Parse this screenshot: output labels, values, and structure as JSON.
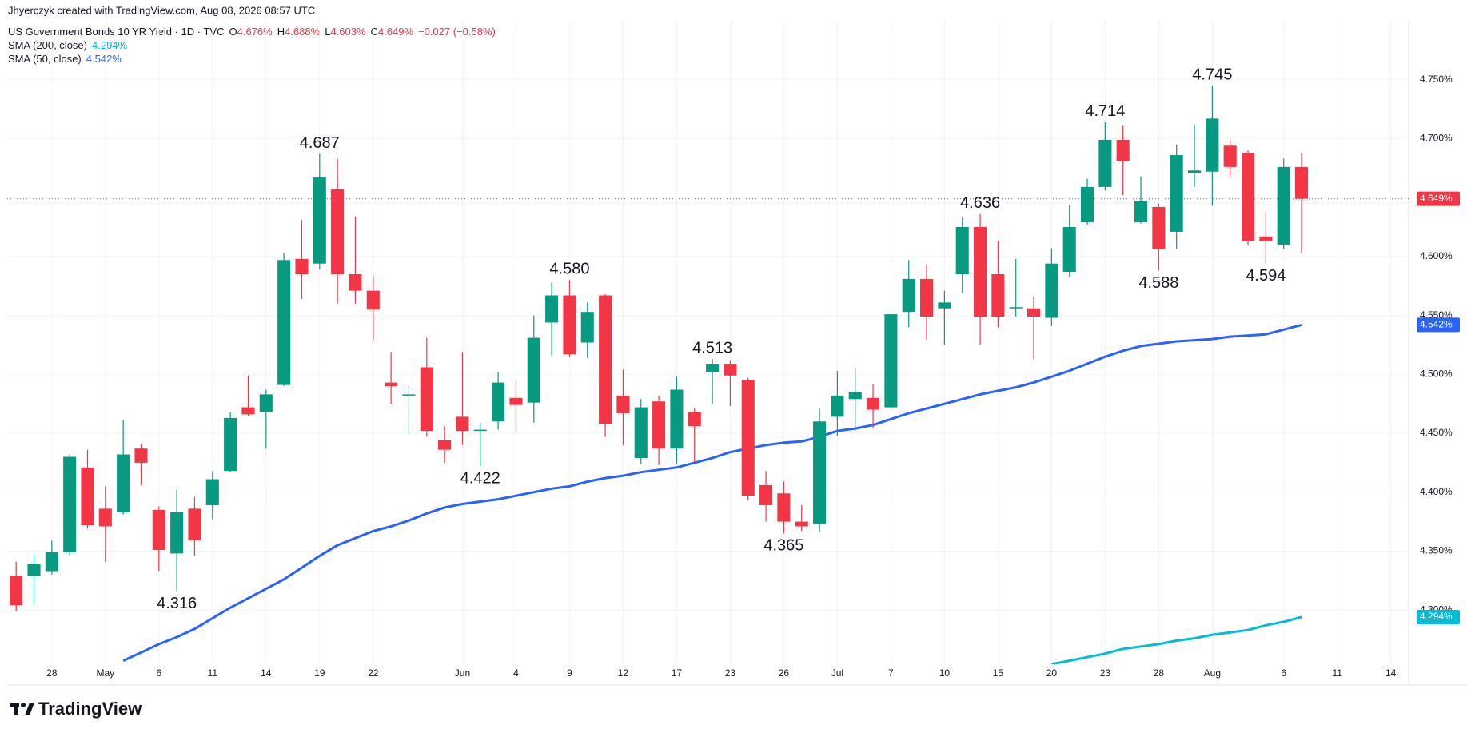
{
  "header": {
    "credit": "Jhyerczyk created with TradingView.com, Aug 08, 2026 08:57 UTC",
    "symbol": "US Government Bonds 10 YR Yield · 1D · TVC",
    "ohlc": [
      {
        "key": "O",
        "value": "4.676%"
      },
      {
        "key": "H",
        "value": "4.688%"
      },
      {
        "key": "L",
        "value": "4.603%"
      },
      {
        "key": "C",
        "value": "4.649%"
      }
    ],
    "change": "−0.027 (−0.58%)",
    "logo": "TradingView"
  },
  "chart_data": {
    "type": "candlestick",
    "up_color": "#089981",
    "down_color": "#f23645",
    "ohlc": {
      "open": [
        4.329,
        4.329,
        4.333,
        4.349,
        4.421,
        4.386,
        4.383,
        4.437,
        4.385,
        4.348,
        4.386,
        4.389,
        4.418,
        4.472,
        4.468,
        4.491,
        4.598,
        4.594,
        4.657,
        4.585,
        4.571,
        4.493,
        4.482,
        4.506,
        4.444,
        4.464,
        4.452,
        4.46,
        4.48,
        4.476,
        4.544,
        4.567,
        4.527,
        4.567,
        4.482,
        4.429,
        4.477,
        4.437,
        4.468,
        4.502,
        4.509,
        4.495,
        4.406,
        4.399,
        4.375,
        4.373,
        4.464,
        4.479,
        4.48,
        4.472,
        4.553,
        4.581,
        4.556,
        4.585,
        4.625,
        4.585,
        4.556,
        4.556,
        4.548,
        4.587,
        4.629,
        4.659,
        4.699,
        4.629,
        4.642,
        4.621,
        4.671,
        4.672,
        4.694,
        4.688,
        4.617,
        4.61,
        4.676
      ],
      "high": [
        4.341,
        4.348,
        4.359,
        4.432,
        4.436,
        4.405,
        4.461,
        4.441,
        4.388,
        4.402,
        4.396,
        4.418,
        4.468,
        4.499,
        4.487,
        4.603,
        4.631,
        4.687,
        4.683,
        4.634,
        4.584,
        4.519,
        4.49,
        4.531,
        4.456,
        4.519,
        4.459,
        4.502,
        4.495,
        4.55,
        4.578,
        4.58,
        4.561,
        4.568,
        4.504,
        4.479,
        4.482,
        4.498,
        4.471,
        4.513,
        4.512,
        4.497,
        4.418,
        4.409,
        4.389,
        4.471,
        4.503,
        4.505,
        4.492,
        4.552,
        4.597,
        4.593,
        4.571,
        4.633,
        4.636,
        4.613,
        4.598,
        4.566,
        4.607,
        4.644,
        4.666,
        4.714,
        4.711,
        4.668,
        4.645,
        4.695,
        4.712,
        4.745,
        4.699,
        4.69,
        4.638,
        4.683,
        4.688
      ],
      "low": [
        4.299,
        4.306,
        4.33,
        4.346,
        4.369,
        4.341,
        4.381,
        4.406,
        4.333,
        4.316,
        4.346,
        4.377,
        4.417,
        4.465,
        4.437,
        4.49,
        4.564,
        4.589,
        4.56,
        4.56,
        4.529,
        4.475,
        4.449,
        4.447,
        4.425,
        4.44,
        4.422,
        4.453,
        4.451,
        4.459,
        4.516,
        4.515,
        4.514,
        4.447,
        4.44,
        4.424,
        4.423,
        4.424,
        4.425,
        4.475,
        4.473,
        4.393,
        4.375,
        4.365,
        4.367,
        4.366,
        4.448,
        4.452,
        4.454,
        4.471,
        4.54,
        4.529,
        4.525,
        4.569,
        4.525,
        4.54,
        4.549,
        4.513,
        4.541,
        4.583,
        4.627,
        4.656,
        4.652,
        4.628,
        4.588,
        4.606,
        4.659,
        4.643,
        4.667,
        4.61,
        4.594,
        4.606,
        4.603
      ],
      "close": [
        4.304,
        4.339,
        4.349,
        4.43,
        4.372,
        4.371,
        4.432,
        4.425,
        4.351,
        4.383,
        4.359,
        4.411,
        4.463,
        4.466,
        4.483,
        4.597,
        4.585,
        4.667,
        4.585,
        4.571,
        4.555,
        4.49,
        4.483,
        4.452,
        4.436,
        4.452,
        4.453,
        4.493,
        4.474,
        4.531,
        4.567,
        4.517,
        4.553,
        4.458,
        4.467,
        4.472,
        4.437,
        4.487,
        4.456,
        4.509,
        4.499,
        4.397,
        4.389,
        4.375,
        4.371,
        4.46,
        4.482,
        4.485,
        4.47,
        4.551,
        4.581,
        4.549,
        4.561,
        4.625,
        4.549,
        4.549,
        4.557,
        4.549,
        4.594,
        4.625,
        4.659,
        4.699,
        4.681,
        4.647,
        4.606,
        4.686,
        4.673,
        4.717,
        4.676,
        4.613,
        4.613,
        4.676,
        4.649
      ]
    },
    "last_label": "4.649%",
    "series": [
      {
        "name": "SMA (200, close)",
        "color": "#00bcd4",
        "last_label": "4.294%",
        "values": [
          null,
          null,
          null,
          null,
          null,
          null,
          null,
          null,
          null,
          null,
          null,
          null,
          null,
          null,
          null,
          null,
          null,
          null,
          null,
          null,
          null,
          null,
          null,
          null,
          null,
          null,
          null,
          null,
          null,
          null,
          null,
          null,
          null,
          null,
          null,
          null,
          null,
          null,
          null,
          null,
          null,
          null,
          null,
          null,
          null,
          null,
          null,
          null,
          null,
          null,
          null,
          null,
          null,
          null,
          null,
          null,
          null,
          null,
          4.254,
          4.257,
          4.26,
          4.263,
          4.267,
          4.269,
          4.271,
          4.274,
          4.276,
          4.279,
          4.281,
          4.283,
          4.287,
          4.29,
          4.294
        ]
      },
      {
        "name": "SMA (50, close)",
        "color": "#2962ff",
        "last_label": "4.542%",
        "values": [
          null,
          null,
          null,
          null,
          null,
          null,
          4.257,
          4.264,
          4.271,
          4.277,
          4.284,
          4.293,
          4.302,
          4.31,
          4.318,
          4.326,
          4.336,
          4.346,
          4.355,
          4.361,
          4.367,
          4.371,
          4.376,
          4.382,
          4.387,
          4.39,
          4.392,
          4.394,
          4.397,
          4.4,
          4.403,
          4.405,
          4.409,
          4.412,
          4.414,
          4.417,
          4.419,
          4.421,
          4.425,
          4.429,
          4.434,
          4.437,
          4.44,
          4.442,
          4.443,
          4.447,
          4.452,
          4.454,
          4.457,
          4.462,
          4.467,
          4.471,
          4.475,
          4.479,
          4.483,
          4.486,
          4.489,
          4.493,
          4.498,
          4.503,
          4.509,
          4.515,
          4.52,
          4.524,
          4.526,
          4.528,
          4.529,
          4.53,
          4.532,
          4.533,
          4.534,
          4.538,
          4.542
        ]
      }
    ],
    "annotations": [
      {
        "value": 4.687,
        "label": "4.687"
      },
      {
        "value": 4.316,
        "label": "4.316"
      },
      {
        "value": 4.58,
        "label": "4.580"
      },
      {
        "value": 4.422,
        "label": "4.422"
      },
      {
        "value": 4.365,
        "label": "4.365"
      },
      {
        "value": 4.636,
        "label": "4.636"
      },
      {
        "value": 4.513,
        "label": "4.513"
      },
      {
        "value": 4.714,
        "label": "4.714"
      },
      {
        "value": 4.588,
        "label": "4.588"
      },
      {
        "value": 4.745,
        "label": "4.745"
      },
      {
        "value": 4.594,
        "label": "4.594"
      }
    ],
    "xlim": [
      -0.5,
      78
    ],
    "xticks": [
      {
        "value": 2,
        "label": "28"
      },
      {
        "value": 5,
        "label": "May"
      },
      {
        "value": 8,
        "label": "6"
      },
      {
        "value": 11,
        "label": "11"
      },
      {
        "value": 14,
        "label": "14"
      },
      {
        "value": 17,
        "label": "19"
      },
      {
        "value": 20,
        "label": "22"
      },
      {
        "value": 25,
        "label": "Jun"
      },
      {
        "value": 28,
        "label": "4"
      },
      {
        "value": 31,
        "label": "9"
      },
      {
        "value": 34,
        "label": "12"
      },
      {
        "value": 37,
        "label": "17"
      },
      {
        "value": 40,
        "label": "23"
      },
      {
        "value": 43,
        "label": "26"
      },
      {
        "value": 46,
        "label": "Jul"
      },
      {
        "value": 49,
        "label": "7"
      },
      {
        "value": 52,
        "label": "10"
      },
      {
        "value": 55,
        "label": "15"
      },
      {
        "value": 58,
        "label": "20"
      },
      {
        "value": 61,
        "label": "23"
      },
      {
        "value": 64,
        "label": "28"
      },
      {
        "value": 67,
        "label": "Aug"
      },
      {
        "value": 71,
        "label": "6"
      },
      {
        "value": 74,
        "label": "11"
      },
      {
        "value": 77,
        "label": "14"
      }
    ],
    "ylim": [
      4.254,
      4.8
    ],
    "yticks": [
      {
        "value": 4.3,
        "label": "4.300%"
      },
      {
        "value": 4.35,
        "label": "4.350%"
      },
      {
        "value": 4.4,
        "label": "4.400%"
      },
      {
        "value": 4.45,
        "label": "4.450%"
      },
      {
        "value": 4.5,
        "label": "4.500%"
      },
      {
        "value": 4.55,
        "label": "4.550%"
      },
      {
        "value": 4.6,
        "label": "4.600%"
      },
      {
        "value": 4.65,
        "label": "4.650%"
      },
      {
        "value": 4.7,
        "label": "4.700%"
      },
      {
        "value": 4.75,
        "label": "4.750%"
      }
    ],
    "grid": true
  }
}
